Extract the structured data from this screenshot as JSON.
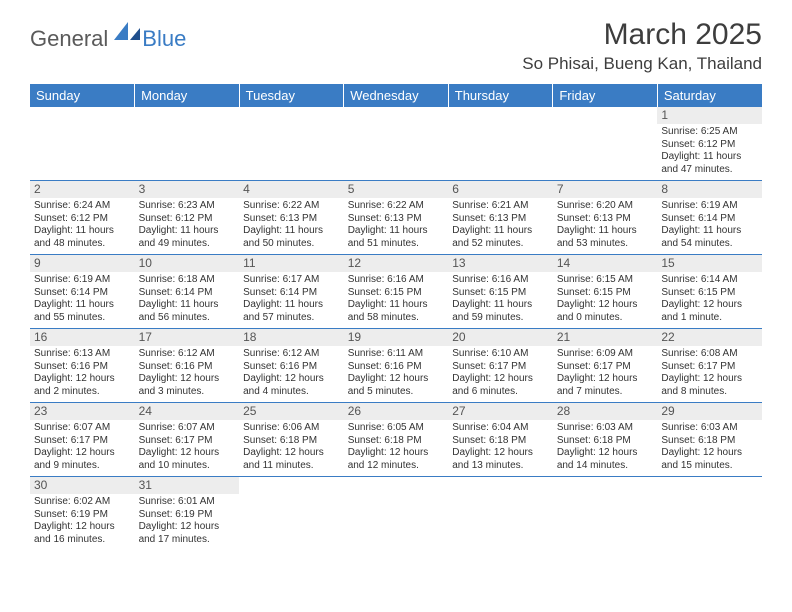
{
  "logo": {
    "part1": "General",
    "part2": "Blue"
  },
  "title": "March 2025",
  "location": "So Phisai, Bueng Kan, Thailand",
  "colors": {
    "header_bg": "#3a7cc4",
    "header_text": "#ffffff",
    "rule": "#3a7cc4",
    "daynum_bg": "#ededed"
  },
  "weekdays": [
    "Sunday",
    "Monday",
    "Tuesday",
    "Wednesday",
    "Thursday",
    "Friday",
    "Saturday"
  ],
  "weeks": [
    [
      {
        "n": "",
        "sr": "",
        "ss": "",
        "dl": ""
      },
      {
        "n": "",
        "sr": "",
        "ss": "",
        "dl": ""
      },
      {
        "n": "",
        "sr": "",
        "ss": "",
        "dl": ""
      },
      {
        "n": "",
        "sr": "",
        "ss": "",
        "dl": ""
      },
      {
        "n": "",
        "sr": "",
        "ss": "",
        "dl": ""
      },
      {
        "n": "",
        "sr": "",
        "ss": "",
        "dl": ""
      },
      {
        "n": "1",
        "sr": "Sunrise: 6:25 AM",
        "ss": "Sunset: 6:12 PM",
        "dl": "Daylight: 11 hours and 47 minutes."
      }
    ],
    [
      {
        "n": "2",
        "sr": "Sunrise: 6:24 AM",
        "ss": "Sunset: 6:12 PM",
        "dl": "Daylight: 11 hours and 48 minutes."
      },
      {
        "n": "3",
        "sr": "Sunrise: 6:23 AM",
        "ss": "Sunset: 6:12 PM",
        "dl": "Daylight: 11 hours and 49 minutes."
      },
      {
        "n": "4",
        "sr": "Sunrise: 6:22 AM",
        "ss": "Sunset: 6:13 PM",
        "dl": "Daylight: 11 hours and 50 minutes."
      },
      {
        "n": "5",
        "sr": "Sunrise: 6:22 AM",
        "ss": "Sunset: 6:13 PM",
        "dl": "Daylight: 11 hours and 51 minutes."
      },
      {
        "n": "6",
        "sr": "Sunrise: 6:21 AM",
        "ss": "Sunset: 6:13 PM",
        "dl": "Daylight: 11 hours and 52 minutes."
      },
      {
        "n": "7",
        "sr": "Sunrise: 6:20 AM",
        "ss": "Sunset: 6:13 PM",
        "dl": "Daylight: 11 hours and 53 minutes."
      },
      {
        "n": "8",
        "sr": "Sunrise: 6:19 AM",
        "ss": "Sunset: 6:14 PM",
        "dl": "Daylight: 11 hours and 54 minutes."
      }
    ],
    [
      {
        "n": "9",
        "sr": "Sunrise: 6:19 AM",
        "ss": "Sunset: 6:14 PM",
        "dl": "Daylight: 11 hours and 55 minutes."
      },
      {
        "n": "10",
        "sr": "Sunrise: 6:18 AM",
        "ss": "Sunset: 6:14 PM",
        "dl": "Daylight: 11 hours and 56 minutes."
      },
      {
        "n": "11",
        "sr": "Sunrise: 6:17 AM",
        "ss": "Sunset: 6:14 PM",
        "dl": "Daylight: 11 hours and 57 minutes."
      },
      {
        "n": "12",
        "sr": "Sunrise: 6:16 AM",
        "ss": "Sunset: 6:15 PM",
        "dl": "Daylight: 11 hours and 58 minutes."
      },
      {
        "n": "13",
        "sr": "Sunrise: 6:16 AM",
        "ss": "Sunset: 6:15 PM",
        "dl": "Daylight: 11 hours and 59 minutes."
      },
      {
        "n": "14",
        "sr": "Sunrise: 6:15 AM",
        "ss": "Sunset: 6:15 PM",
        "dl": "Daylight: 12 hours and 0 minutes."
      },
      {
        "n": "15",
        "sr": "Sunrise: 6:14 AM",
        "ss": "Sunset: 6:15 PM",
        "dl": "Daylight: 12 hours and 1 minute."
      }
    ],
    [
      {
        "n": "16",
        "sr": "Sunrise: 6:13 AM",
        "ss": "Sunset: 6:16 PM",
        "dl": "Daylight: 12 hours and 2 minutes."
      },
      {
        "n": "17",
        "sr": "Sunrise: 6:12 AM",
        "ss": "Sunset: 6:16 PM",
        "dl": "Daylight: 12 hours and 3 minutes."
      },
      {
        "n": "18",
        "sr": "Sunrise: 6:12 AM",
        "ss": "Sunset: 6:16 PM",
        "dl": "Daylight: 12 hours and 4 minutes."
      },
      {
        "n": "19",
        "sr": "Sunrise: 6:11 AM",
        "ss": "Sunset: 6:16 PM",
        "dl": "Daylight: 12 hours and 5 minutes."
      },
      {
        "n": "20",
        "sr": "Sunrise: 6:10 AM",
        "ss": "Sunset: 6:17 PM",
        "dl": "Daylight: 12 hours and 6 minutes."
      },
      {
        "n": "21",
        "sr": "Sunrise: 6:09 AM",
        "ss": "Sunset: 6:17 PM",
        "dl": "Daylight: 12 hours and 7 minutes."
      },
      {
        "n": "22",
        "sr": "Sunrise: 6:08 AM",
        "ss": "Sunset: 6:17 PM",
        "dl": "Daylight: 12 hours and 8 minutes."
      }
    ],
    [
      {
        "n": "23",
        "sr": "Sunrise: 6:07 AM",
        "ss": "Sunset: 6:17 PM",
        "dl": "Daylight: 12 hours and 9 minutes."
      },
      {
        "n": "24",
        "sr": "Sunrise: 6:07 AM",
        "ss": "Sunset: 6:17 PM",
        "dl": "Daylight: 12 hours and 10 minutes."
      },
      {
        "n": "25",
        "sr": "Sunrise: 6:06 AM",
        "ss": "Sunset: 6:18 PM",
        "dl": "Daylight: 12 hours and 11 minutes."
      },
      {
        "n": "26",
        "sr": "Sunrise: 6:05 AM",
        "ss": "Sunset: 6:18 PM",
        "dl": "Daylight: 12 hours and 12 minutes."
      },
      {
        "n": "27",
        "sr": "Sunrise: 6:04 AM",
        "ss": "Sunset: 6:18 PM",
        "dl": "Daylight: 12 hours and 13 minutes."
      },
      {
        "n": "28",
        "sr": "Sunrise: 6:03 AM",
        "ss": "Sunset: 6:18 PM",
        "dl": "Daylight: 12 hours and 14 minutes."
      },
      {
        "n": "29",
        "sr": "Sunrise: 6:03 AM",
        "ss": "Sunset: 6:18 PM",
        "dl": "Daylight: 12 hours and 15 minutes."
      }
    ],
    [
      {
        "n": "30",
        "sr": "Sunrise: 6:02 AM",
        "ss": "Sunset: 6:19 PM",
        "dl": "Daylight: 12 hours and 16 minutes."
      },
      {
        "n": "31",
        "sr": "Sunrise: 6:01 AM",
        "ss": "Sunset: 6:19 PM",
        "dl": "Daylight: 12 hours and 17 minutes."
      },
      {
        "n": "",
        "sr": "",
        "ss": "",
        "dl": ""
      },
      {
        "n": "",
        "sr": "",
        "ss": "",
        "dl": ""
      },
      {
        "n": "",
        "sr": "",
        "ss": "",
        "dl": ""
      },
      {
        "n": "",
        "sr": "",
        "ss": "",
        "dl": ""
      },
      {
        "n": "",
        "sr": "",
        "ss": "",
        "dl": ""
      }
    ]
  ]
}
